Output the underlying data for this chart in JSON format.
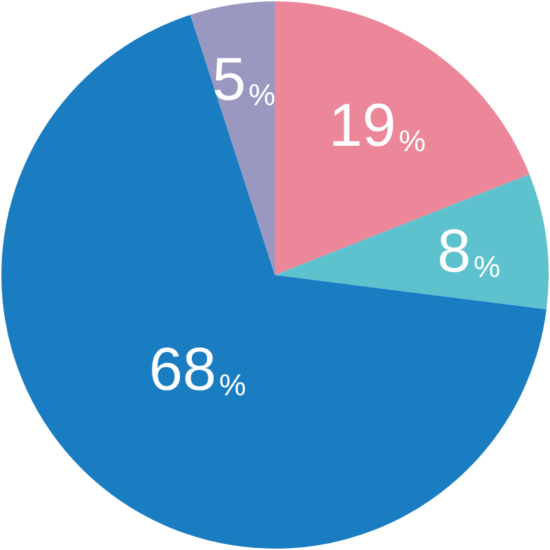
{
  "chart_data": {
    "type": "pie",
    "categories": [
      null,
      null,
      null,
      null
    ],
    "values": [
      19,
      8,
      68,
      5
    ],
    "colors": [
      "#eb8799",
      "#5dc1ce",
      "#1a7dc2",
      "#9a98c0"
    ],
    "value_labels": [
      "19%",
      "8%",
      "68%",
      "5%"
    ]
  }
}
